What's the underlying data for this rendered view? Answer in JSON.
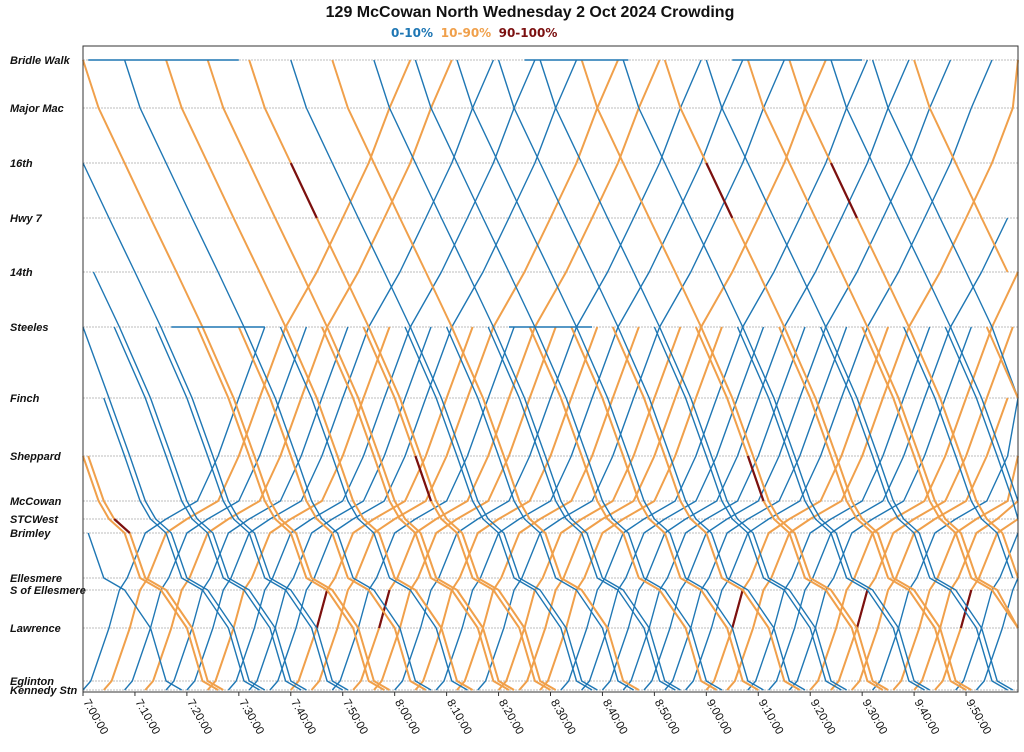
{
  "chart_data": {
    "type": "line",
    "title": "129 McCowan North Wednesday 2 Oct 2024 Crowding",
    "legend": [
      {
        "label": "0-10%",
        "color": "#1f77b4"
      },
      {
        "label": "10-90%",
        "color": "#f0a04b"
      },
      {
        "label": "90-100%",
        "color": "#7b1010"
      }
    ],
    "legend_position": "top-center",
    "grid": "horizontal",
    "x_range": [
      "7:00:00",
      "10:00:00"
    ],
    "x_ticks": [
      "7:00:00",
      "7:10:00",
      "7:20:00",
      "7:30:00",
      "7:40:00",
      "7:50:00",
      "8:00:00",
      "8:10:00",
      "8:20:00",
      "8:30:00",
      "8:40:00",
      "8:50:00",
      "9:00:00",
      "9:10:00",
      "9:20:00",
      "9:30:00",
      "9:40:00",
      "9:50:00"
    ],
    "stops": [
      "Bridle Walk",
      "Major Mac",
      "16th",
      "Hwy 7",
      "14th",
      "Steeles",
      "Finch",
      "Sheppard",
      "McCowan",
      "STCWest",
      "Brimley",
      "Ellesmere",
      "S of Ellesmere",
      "Lawrence",
      "Eglinton",
      "Kennedy Stn"
    ],
    "note_series": "Each trip is one line; colour shows crowding level.",
    "northbound_departures_kennedy": [
      "7:00",
      "7:04",
      "7:08",
      "7:12",
      "7:16",
      "7:20",
      "7:24",
      "7:28",
      "7:32",
      "7:36",
      "7:40",
      "7:44",
      "7:48",
      "7:52",
      "7:56",
      "8:00",
      "8:04",
      "8:08",
      "8:12",
      "8:16",
      "8:20",
      "8:24",
      "8:28",
      "8:32",
      "8:36",
      "8:40",
      "8:44",
      "8:48",
      "8:52",
      "8:56",
      "9:00",
      "9:04",
      "9:08",
      "9:12",
      "9:16",
      "9:20",
      "9:24",
      "9:28",
      "9:32",
      "9:36",
      "9:40",
      "9:44",
      "9:48",
      "9:52"
    ],
    "southbound_departures_bridle_walk": [
      "6:20",
      "6:28",
      "6:36",
      "6:44",
      "6:52",
      "7:00",
      "7:08",
      "7:16",
      "7:24",
      "7:32",
      "7:40",
      "7:48",
      "7:56",
      "8:04",
      "8:12",
      "8:20",
      "8:28",
      "8:36",
      "8:44",
      "8:52",
      "9:00",
      "9:08",
      "9:16",
      "9:24",
      "9:32",
      "9:40"
    ],
    "short_turn_departures_steeles": [
      "6:50",
      "6:58",
      "7:06",
      "7:14",
      "7:22",
      "7:30",
      "7:38",
      "7:46",
      "7:54",
      "8:02",
      "8:10",
      "8:18",
      "8:26",
      "8:34",
      "8:42",
      "8:50",
      "8:58",
      "9:06",
      "9:14",
      "9:22",
      "9:30",
      "9:38",
      "9:46",
      "9:54"
    ]
  }
}
